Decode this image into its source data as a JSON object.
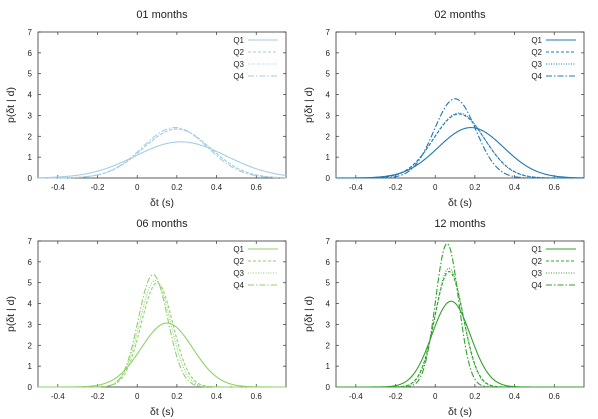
{
  "chart_data": [
    {
      "type": "line",
      "title": "01 months",
      "xlabel": "δt (s)",
      "ylabel": "p(δt | d)",
      "xlim": [
        -0.5,
        0.75
      ],
      "ylim": [
        0,
        7
      ],
      "xticks": [
        "-0.4",
        "-0.2",
        "0",
        "0.2",
        "0.4",
        "0.6"
      ],
      "yticks": [
        "0",
        "1",
        "2",
        "3",
        "4",
        "5",
        "6",
        "7"
      ],
      "legend": "top-right",
      "color": "#a6cee3",
      "series": [
        {
          "name": "Q1",
          "style": "solid",
          "mean": 0.22,
          "sd": 0.23
        },
        {
          "name": "Q2",
          "style": "dashed",
          "mean": 0.2,
          "sd": 0.17
        },
        {
          "name": "Q3",
          "style": "dotted",
          "mean": 0.2,
          "sd": 0.17
        },
        {
          "name": "Q4",
          "style": "dashdot",
          "mean": 0.19,
          "sd": 0.165
        }
      ]
    },
    {
      "type": "line",
      "title": "02 months",
      "xlabel": "δt (s)",
      "ylabel": "p(δt | d)",
      "xlim": [
        -0.5,
        0.75
      ],
      "ylim": [
        0,
        7
      ],
      "xticks": [
        "-0.4",
        "-0.2",
        "0",
        "0.2",
        "0.4",
        "0.6"
      ],
      "yticks": [
        "0",
        "1",
        "2",
        "3",
        "4",
        "5",
        "6",
        "7"
      ],
      "legend": "top-right",
      "color": "#1f78b4",
      "series": [
        {
          "name": "Q1",
          "style": "solid",
          "mean": 0.18,
          "sd": 0.165
        },
        {
          "name": "Q2",
          "style": "dashed",
          "mean": 0.12,
          "sd": 0.13
        },
        {
          "name": "Q3",
          "style": "dotted",
          "mean": 0.12,
          "sd": 0.128
        },
        {
          "name": "Q4",
          "style": "dashdot",
          "mean": 0.1,
          "sd": 0.105
        }
      ]
    },
    {
      "type": "line",
      "title": "06 months",
      "xlabel": "δt (s)",
      "ylabel": "p(δt | d)",
      "xlim": [
        -0.5,
        0.75
      ],
      "ylim": [
        0,
        7
      ],
      "xticks": [
        "-0.4",
        "-0.2",
        "0",
        "0.2",
        "0.4",
        "0.6"
      ],
      "yticks": [
        "0",
        "1",
        "2",
        "3",
        "4",
        "5",
        "6",
        "7"
      ],
      "legend": "top-right",
      "color": "#8fd16b",
      "series": [
        {
          "name": "Q1",
          "style": "solid",
          "mean": 0.15,
          "sd": 0.13
        },
        {
          "name": "Q2",
          "style": "dashed",
          "mean": 0.1,
          "sd": 0.08
        },
        {
          "name": "Q3",
          "style": "dotted",
          "mean": 0.09,
          "sd": 0.078
        },
        {
          "name": "Q4",
          "style": "dashdot",
          "mean": 0.08,
          "sd": 0.074
        }
      ]
    },
    {
      "type": "line",
      "title": "12 months",
      "xlabel": "δt (s)",
      "ylabel": "p(δt | d)",
      "xlim": [
        -0.5,
        0.75
      ],
      "ylim": [
        0,
        7
      ],
      "xticks": [
        "-0.4",
        "-0.2",
        "0",
        "0.2",
        "0.4",
        "0.6"
      ],
      "yticks": [
        "0",
        "1",
        "2",
        "3",
        "4",
        "5",
        "6",
        "7"
      ],
      "legend": "top-right",
      "color": "#33a02c",
      "series": [
        {
          "name": "Q1",
          "style": "solid",
          "mean": 0.08,
          "sd": 0.097
        },
        {
          "name": "Q2",
          "style": "dashed",
          "mean": 0.07,
          "sd": 0.072
        },
        {
          "name": "Q3",
          "style": "dotted",
          "mean": 0.07,
          "sd": 0.07
        },
        {
          "name": "Q4",
          "style": "dashdot",
          "mean": 0.06,
          "sd": 0.058
        }
      ]
    }
  ]
}
